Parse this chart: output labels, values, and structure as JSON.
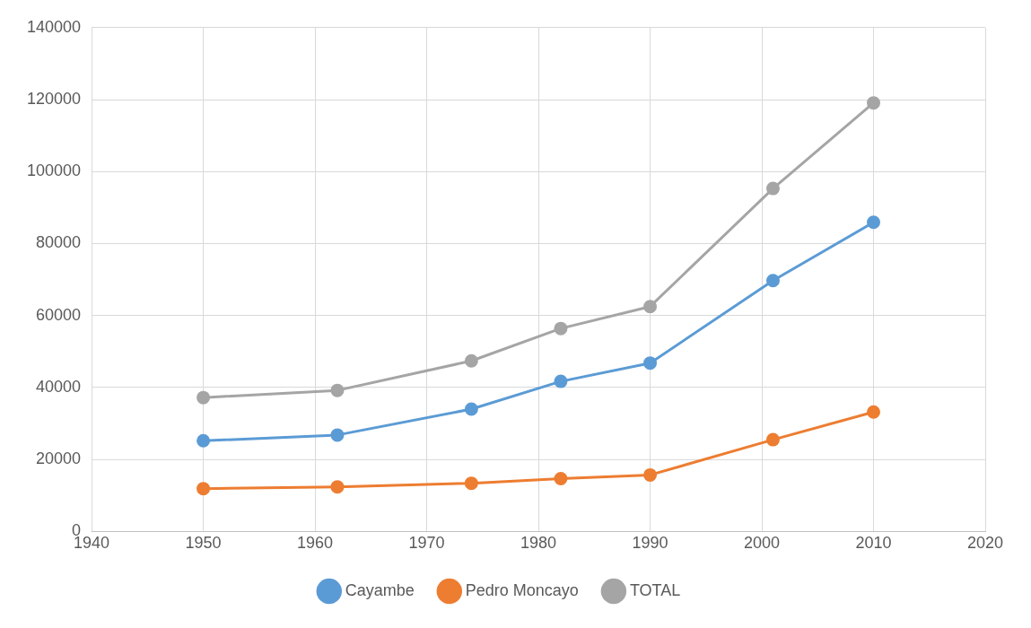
{
  "chart_data": {
    "type": "line",
    "x": [
      1950,
      1962,
      1974,
      1982,
      1990,
      2001,
      2010
    ],
    "series": [
      {
        "name": "Cayambe",
        "color": "#5b9bd5",
        "values": [
          25200,
          26800,
          34000,
          41700,
          46800,
          69700,
          85900
        ]
      },
      {
        "name": "Pedro Moncayo",
        "color": "#ed7d31",
        "values": [
          11900,
          12400,
          13400,
          14700,
          15700,
          25500,
          33200
        ]
      },
      {
        "name": "TOTAL",
        "color": "#a5a5a5",
        "values": [
          37200,
          39200,
          47400,
          56400,
          62500,
          95300,
          119100
        ]
      }
    ],
    "xlim": [
      1940,
      2020
    ],
    "xticks": [
      1940,
      1950,
      1960,
      1970,
      1980,
      1990,
      2000,
      2010,
      2020
    ],
    "ylim": [
      0,
      140000
    ],
    "yticks": [
      0,
      20000,
      40000,
      60000,
      80000,
      100000,
      120000,
      140000
    ],
    "grid": true,
    "legend": "bottom",
    "marker": "circle",
    "line_style": "solid"
  }
}
